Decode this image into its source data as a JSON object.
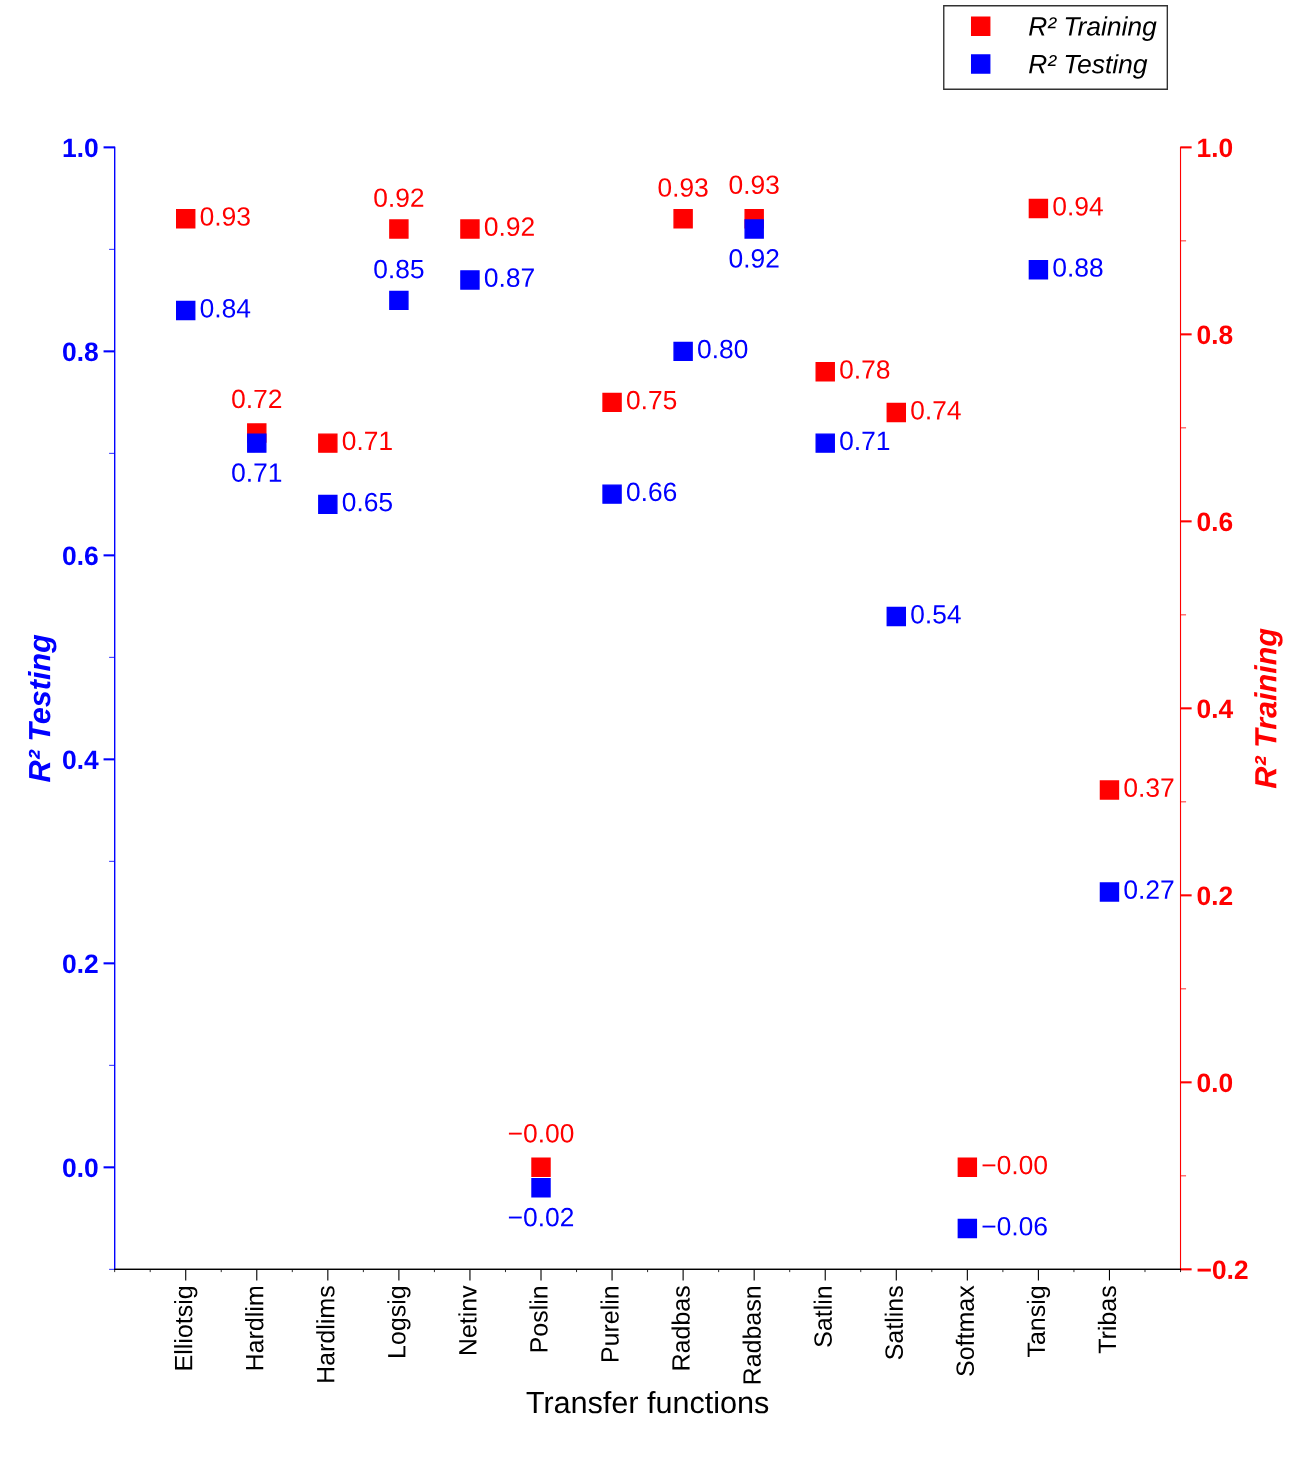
{
  "chart_data": {
    "type": "scatter",
    "xlabel": "Transfer functions",
    "ylabel": "R² Testing",
    "y2label": "R² Training",
    "categories": [
      "Elliotsig",
      "Hardlim",
      "Hardlims",
      "Logsig",
      "Netinv",
      "Poslin",
      "Purelin",
      "Radbas",
      "Radbasn",
      "Satlin",
      "Satlins",
      "Softmax",
      "Tansig",
      "Tribas"
    ],
    "series": [
      {
        "name": "R² Training",
        "color": "#ff0000",
        "values": [
          0.93,
          0.72,
          0.71,
          0.92,
          0.92,
          0.0,
          0.75,
          0.93,
          0.93,
          0.78,
          0.74,
          0.0,
          0.94,
          0.37
        ],
        "value_labels": [
          "0.93",
          "0.72",
          "0.71",
          "0.92",
          "0.92",
          "−0.00",
          "0.75",
          "0.93",
          "0.93",
          "0.78",
          "0.74",
          "−0.00",
          "0.94",
          "0.37"
        ]
      },
      {
        "name": "R² Testing",
        "color": "#0000ff",
        "values": [
          0.84,
          0.71,
          0.65,
          0.85,
          0.87,
          -0.02,
          0.66,
          0.8,
          0.92,
          0.71,
          0.54,
          -0.06,
          0.88,
          0.27
        ],
        "value_labels": [
          "0.84",
          "0.71",
          "0.65",
          "0.85",
          "0.87",
          "−0.02",
          "0.66",
          "0.80",
          "0.92",
          "0.71",
          "0.54",
          "−0.06",
          "0.88",
          "0.27"
        ]
      }
    ],
    "ylim": [
      -0.1,
      1.0
    ],
    "yticks": [
      {
        "value": 0,
        "label": "0.0"
      },
      0.2,
      0.4,
      0.6,
      0.8,
      {
        "value": 1,
        "label": "1.0"
      }
    ],
    "y2lim": [
      -0.2,
      1.0
    ],
    "y2ticks": [
      {
        "value": -0.2,
        "label": "−0.2"
      },
      {
        "value": 0,
        "label": "0.0"
      },
      0.2,
      0.4,
      0.6,
      0.8,
      {
        "value": 1,
        "label": "1.0"
      }
    ],
    "marker": "square",
    "legend": "top right",
    "grid": false
  }
}
